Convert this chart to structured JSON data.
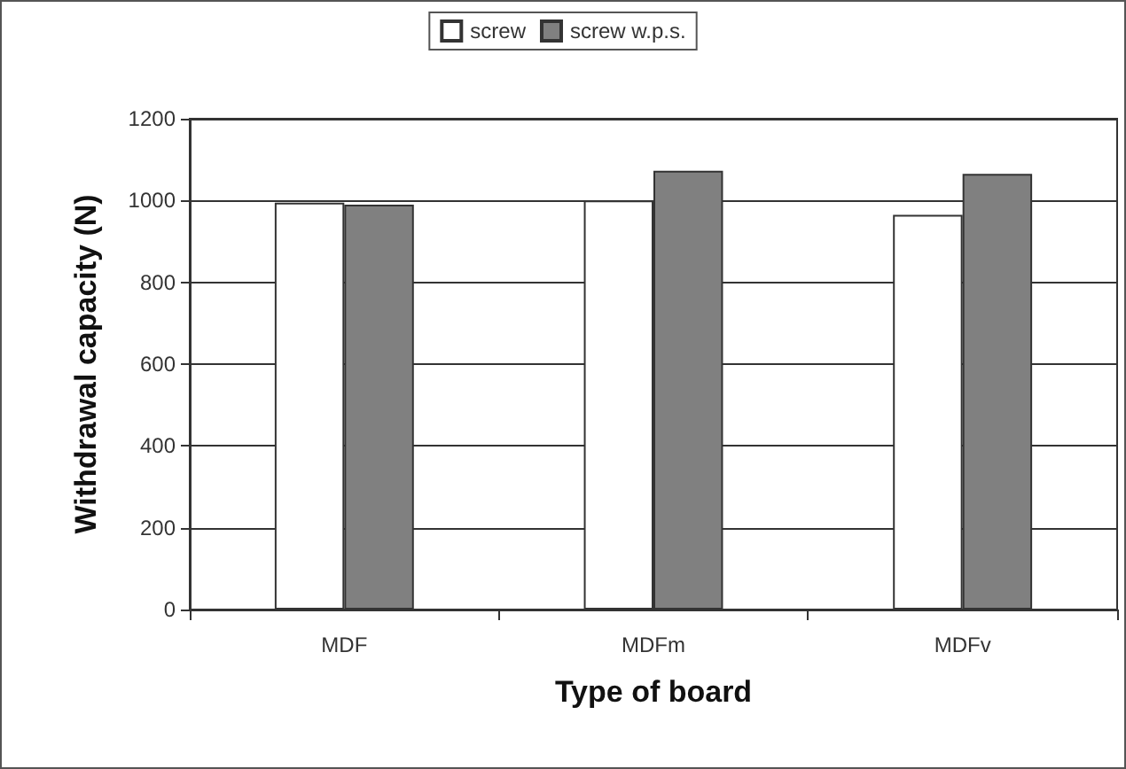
{
  "chart_data": {
    "type": "bar",
    "xlabel": "Type of board",
    "ylabel": "Withdrawal capacity (N)",
    "categories": [
      "MDF",
      "MDFm",
      "MDFv"
    ],
    "series": [
      {
        "name": "screw",
        "color": "#ffffff",
        "values": [
          995,
          1000,
          965
        ]
      },
      {
        "name": "screw w.p.s.",
        "color": "#808080",
        "values": [
          990,
          1073,
          1065
        ]
      }
    ],
    "ylim": [
      0,
      1200
    ],
    "yticks": [
      0,
      200,
      400,
      600,
      800,
      1000,
      1200
    ],
    "grid": "y",
    "legend": "top"
  }
}
